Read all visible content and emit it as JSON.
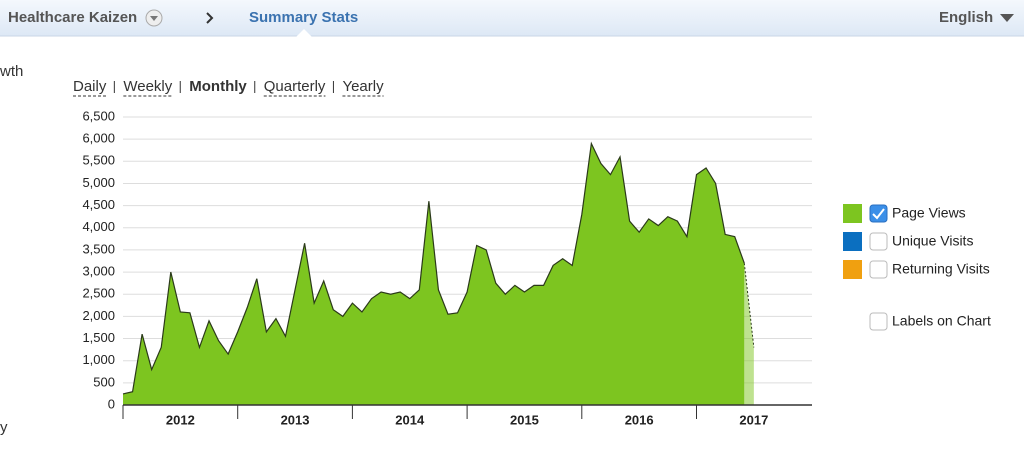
{
  "header": {
    "site": "Healthcare Kaizen",
    "page": "Summary Stats",
    "language": "English"
  },
  "side_text": [
    "wth",
    "y"
  ],
  "periods": {
    "items": [
      "Daily",
      "Weekly",
      "Monthly",
      "Quarterly",
      "Yearly"
    ],
    "active": 2
  },
  "chart_data": {
    "type": "area",
    "categories": [
      null,
      null,
      null,
      null,
      null,
      null,
      null,
      null,
      null,
      null,
      null,
      null,
      null,
      null,
      null,
      null,
      null,
      null,
      null,
      null,
      null,
      null,
      null,
      null,
      null,
      null,
      null,
      null,
      null,
      null,
      null,
      null,
      null,
      null,
      null,
      null,
      null,
      null,
      null,
      null,
      null,
      null,
      null,
      null,
      null,
      null,
      null,
      null,
      null,
      null,
      null,
      null,
      null,
      null,
      null,
      null,
      null,
      null,
      null,
      null,
      null,
      null,
      null,
      null,
      null,
      null,
      null
    ],
    "year_labels": [
      "2012",
      "2013",
      "2014",
      "2015",
      "2016",
      "2017"
    ],
    "series": [
      {
        "name": "Page Views",
        "color": "#7dc520",
        "checked": true,
        "values": [
          250,
          300,
          1600,
          800,
          1300,
          3000,
          2100,
          2080,
          1300,
          1900,
          1450,
          1150,
          1650,
          2200,
          2850,
          1650,
          1950,
          1550,
          2600,
          3650,
          2300,
          2800,
          2150,
          2000,
          2300,
          2100,
          2400,
          2550,
          2500,
          2550,
          2400,
          2600,
          4600,
          2600,
          2050,
          2080,
          2550,
          3600,
          3500,
          2750,
          2500,
          2700,
          2550,
          2700,
          2700,
          3150,
          3300,
          3150,
          4300,
          5900,
          5450,
          5200,
          5600,
          4150,
          3900,
          4200,
          4050,
          4250,
          4150,
          3800,
          5200,
          5350,
          5000,
          3850,
          3800,
          3200,
          1300
        ]
      },
      {
        "name": "Unique Visits",
        "color": "#0b6fc0",
        "checked": false
      },
      {
        "name": "Returning Visits",
        "color": "#f0a010",
        "checked": false
      }
    ],
    "option": "Labels on Chart",
    "ylim": [
      0,
      6500
    ],
    "yticks": [
      0,
      500,
      {
        "value": 1000,
        "label": "1,000"
      },
      {
        "value": 1500,
        "label": "1,500"
      },
      {
        "value": 2000,
        "label": "2,000"
      },
      {
        "value": 2500,
        "label": "2,500"
      },
      {
        "value": 3000,
        "label": "3,000"
      },
      {
        "value": 3500,
        "label": "3,500"
      },
      {
        "value": 4000,
        "label": "4,000"
      },
      {
        "value": 4500,
        "label": "4,500"
      },
      {
        "value": 5000,
        "label": "5,000"
      },
      {
        "value": 5500,
        "label": "5,500"
      },
      {
        "value": 6000,
        "label": "6,000"
      },
      {
        "value": 6500,
        "label": "6,500"
      }
    ],
    "grid": true
  }
}
